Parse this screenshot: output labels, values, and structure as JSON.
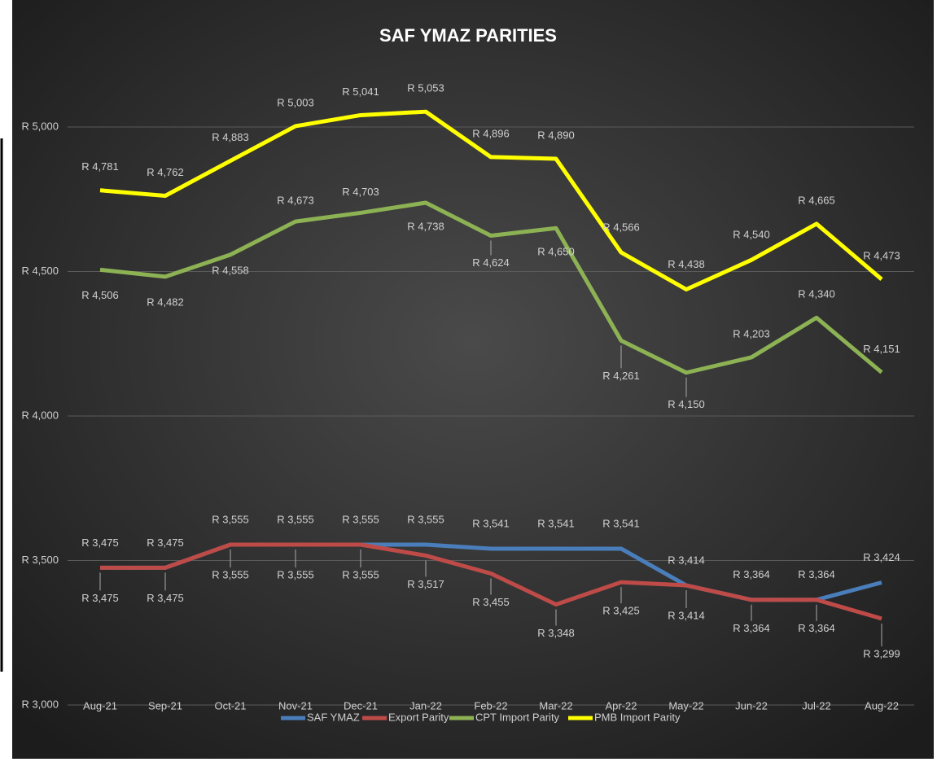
{
  "chart_data": {
    "type": "line",
    "title": "SAF YMAZ PARITIES",
    "categories": [
      "Aug-21",
      "Sep-21",
      "Oct-21",
      "Nov-21",
      "Dec-21",
      "Jan-22",
      "Feb-22",
      "Mar-22",
      "Apr-22",
      "May-22",
      "Jun-22",
      "Jul-22",
      "Aug-22"
    ],
    "ylim": [
      3000,
      5200
    ],
    "yticks": [
      {
        "value": 3000,
        "label": "R 3,000"
      },
      {
        "value": 3500,
        "label": "R 3,500"
      },
      {
        "value": 4000,
        "label": "R 4,000"
      },
      {
        "value": 4500,
        "label": "R 4,500"
      },
      {
        "value": 5000,
        "label": "R 5,000"
      }
    ],
    "grid": true,
    "legend": "bottom",
    "series": [
      {
        "name": "SAF YMAZ",
        "color": "#4a7ebb",
        "values": [
          3475,
          3475,
          3555,
          3555,
          3555,
          3555,
          3541,
          3541,
          3541,
          3414,
          3364,
          3364,
          3424
        ],
        "value_labels": [
          "R 3,475",
          "R 3,475",
          "R 3,555",
          "R 3,555",
          "R 3,555",
          "R 3,555",
          "R 3,541",
          "R 3,541",
          "R 3,541",
          "R 3,414",
          "R 3,364",
          "R 3,364",
          "R 3,424"
        ]
      },
      {
        "name": "Export Parity",
        "color": "#be4b48",
        "values": [
          3475,
          3475,
          3555,
          3555,
          3555,
          3517,
          3455,
          3348,
          3425,
          3414,
          3364,
          3364,
          3299
        ],
        "value_labels": [
          "R 3,475",
          "R 3,475",
          "R 3,555",
          "R 3,555",
          "R 3,555",
          "R 3,517",
          "R 3,455",
          "R 3,348",
          "R 3,425",
          "R 3,414",
          "R 3,364",
          "R 3,364",
          "R 3,299"
        ]
      },
      {
        "name": "CPT Import Parity",
        "color": "#8db254",
        "values": [
          4506,
          4482,
          4558,
          4673,
          4703,
          4738,
          4624,
          4650,
          4261,
          4150,
          4203,
          4340,
          4151
        ],
        "value_labels": [
          "R 4,506",
          "R 4,482",
          "R 4,558",
          "R 4,673",
          "R 4,703",
          "R 4,738",
          "R 4,624",
          "R 4,650",
          "R 4,261",
          "R 4,150",
          "R 4,203",
          "R 4,340",
          "R 4,151"
        ]
      },
      {
        "name": "PMB Import Parity",
        "color": "#ffff00",
        "values": [
          4781,
          4762,
          4883,
          5003,
          5041,
          5053,
          4896,
          4890,
          4566,
          4438,
          4540,
          4665,
          4473
        ],
        "value_labels": [
          "R 4,781",
          "R 4,762",
          "R 4,883",
          "R 5,003",
          "R 5,041",
          "R 5,053",
          "R 4,896",
          "R 4,890",
          "R 4,566",
          "R 4,438",
          "R 4,540",
          "R 4,665",
          "R 4,473"
        ]
      }
    ]
  }
}
